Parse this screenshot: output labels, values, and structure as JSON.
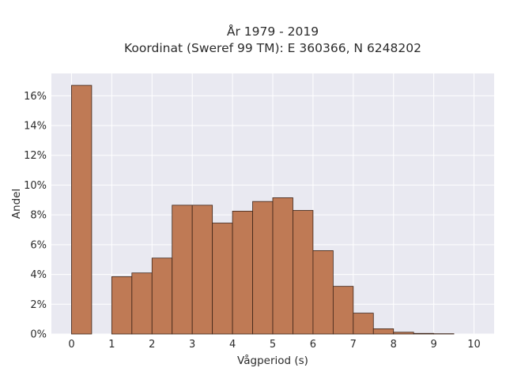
{
  "chart_data": {
    "type": "bar",
    "title_lines": [
      "År 1979 - 2019",
      "Koordinat (Sweref 99 TM): E 360366, N 6248202"
    ],
    "xlabel": "Vågperiod (s)",
    "ylabel": "Andel",
    "x_ticks": [
      0,
      1,
      2,
      3,
      4,
      5,
      6,
      7,
      8,
      9,
      10
    ],
    "y_ticks": [
      0,
      2,
      4,
      6,
      8,
      10,
      12,
      14,
      16
    ],
    "y_tick_labels": [
      "0%",
      "2%",
      "4%",
      "6%",
      "8%",
      "10%",
      "12%",
      "14%",
      "16%"
    ],
    "xlim": [
      -0.5,
      10.5
    ],
    "ylim": [
      0,
      17.5
    ],
    "bin_width": 0.5,
    "bins": [
      {
        "start": 0.0,
        "value": 16.7
      },
      {
        "start": 0.5,
        "value": 0.0
      },
      {
        "start": 1.0,
        "value": 3.85
      },
      {
        "start": 1.5,
        "value": 4.1
      },
      {
        "start": 2.0,
        "value": 5.1
      },
      {
        "start": 2.5,
        "value": 8.65
      },
      {
        "start": 3.0,
        "value": 8.65
      },
      {
        "start": 3.5,
        "value": 7.45
      },
      {
        "start": 4.0,
        "value": 8.25
      },
      {
        "start": 4.5,
        "value": 8.9
      },
      {
        "start": 5.0,
        "value": 9.15
      },
      {
        "start": 5.5,
        "value": 8.3
      },
      {
        "start": 6.0,
        "value": 5.6
      },
      {
        "start": 6.5,
        "value": 3.2
      },
      {
        "start": 7.0,
        "value": 1.4
      },
      {
        "start": 7.5,
        "value": 0.35
      },
      {
        "start": 8.0,
        "value": 0.12
      },
      {
        "start": 8.5,
        "value": 0.04
      },
      {
        "start": 9.0,
        "value": 0.02
      }
    ],
    "grid": true,
    "colors": {
      "bar_fill": "#bf7a55",
      "bar_edge": "#3d2418",
      "plot_background": "#e9e9f1",
      "grid": "#ffffff"
    }
  }
}
